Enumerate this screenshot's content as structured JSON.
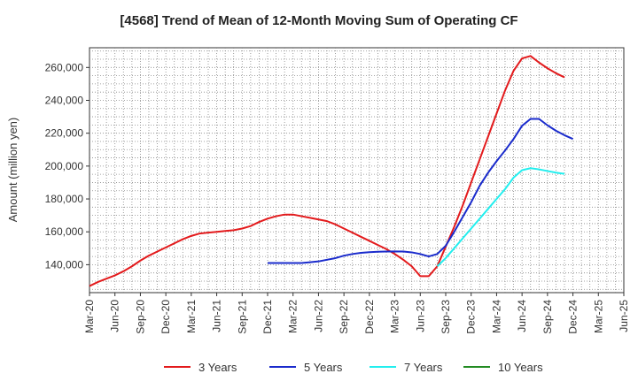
{
  "chart_data": {
    "type": "line",
    "title": "[4568]  Trend of Mean of 12-Month Moving Sum of Operating CF",
    "xlabel": "",
    "ylabel": "Amount (million yen)",
    "ylim": [
      123000,
      272000
    ],
    "y_ticks": [
      140000,
      160000,
      180000,
      200000,
      220000,
      240000,
      260000
    ],
    "y_tick_labels": [
      "140,000",
      "160,000",
      "180,000",
      "200,000",
      "220,000",
      "240,000",
      "260,000"
    ],
    "x_tick_labels": [
      "Mar-20",
      "Jun-20",
      "Sep-20",
      "Dec-20",
      "Mar-21",
      "Jun-21",
      "Sep-21",
      "Dec-21",
      "Mar-22",
      "Jun-22",
      "Sep-22",
      "Dec-22",
      "Mar-23",
      "Jun-23",
      "Sep-23",
      "Dec-23",
      "Mar-24",
      "Jun-24",
      "Sep-24",
      "Dec-24",
      "Mar-25",
      "Jun-25"
    ],
    "x_range_months": [
      0,
      63
    ],
    "grid": true,
    "legend_position": "bottom",
    "series": [
      {
        "name": "3 Years",
        "color": "#e31a1c",
        "start_month": 0,
        "values": [
          127000,
          129500,
          131500,
          133500,
          136000,
          139000,
          142500,
          145500,
          148000,
          150500,
          153000,
          155500,
          157500,
          159000,
          159500,
          160000,
          160500,
          161000,
          162000,
          163500,
          166000,
          168000,
          169500,
          170500,
          170500,
          169500,
          168500,
          167500,
          166500,
          164500,
          162000,
          159500,
          157000,
          154500,
          152000,
          149500,
          146500,
          143000,
          139000,
          133000,
          133000,
          139000,
          151000,
          163000,
          176000,
          190000,
          204000,
          218000,
          232000,
          246000,
          258000,
          265500,
          267000,
          263000,
          259500,
          256500,
          254000
        ]
      },
      {
        "name": "5 Years",
        "color": "#1a2bcc",
        "start_month": 21,
        "values": [
          141000,
          141000,
          141000,
          141000,
          141000,
          141500,
          142000,
          143000,
          144000,
          145500,
          146500,
          147200,
          147600,
          147900,
          148000,
          148100,
          148000,
          147500,
          146500,
          145000,
          146500,
          151500,
          160000,
          169000,
          178000,
          188000,
          196000,
          203000,
          209500,
          216500,
          224500,
          228700,
          228700,
          224800,
          221500,
          218800,
          216500
        ]
      },
      {
        "name": "7 Years",
        "color": "#22eeee",
        "start_month": 41,
        "values": [
          139000,
          144000,
          150000,
          156000,
          162000,
          168000,
          174000,
          180000,
          186000,
          193000,
          197500,
          198700,
          198000,
          197000,
          196000,
          195300
        ]
      },
      {
        "name": "10 Years",
        "color": "#228b22",
        "start_month": 0,
        "values": []
      }
    ]
  }
}
